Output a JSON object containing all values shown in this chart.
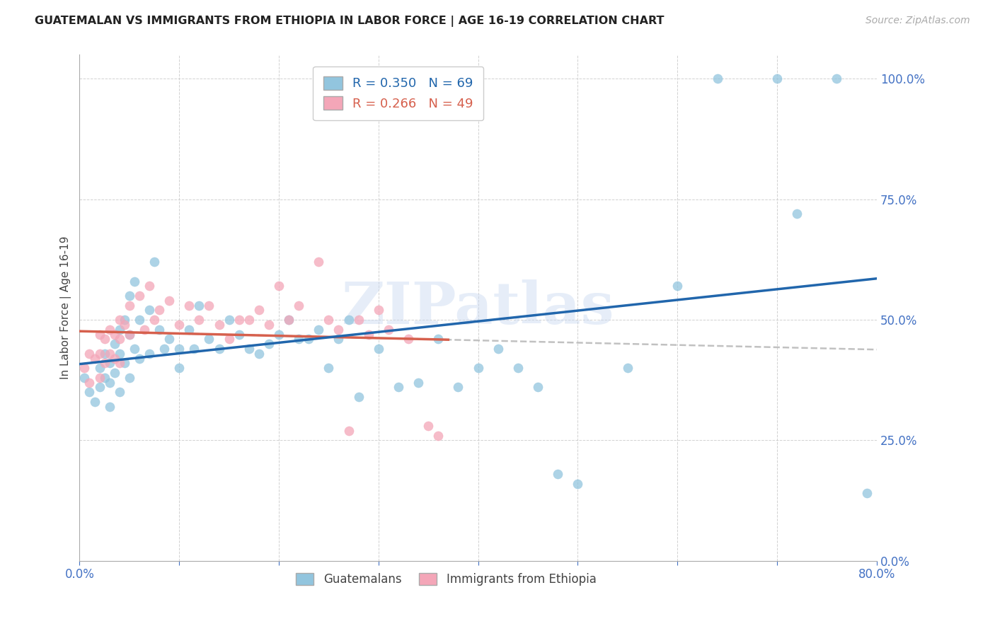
{
  "title": "GUATEMALAN VS IMMIGRANTS FROM ETHIOPIA IN LABOR FORCE | AGE 16-19 CORRELATION CHART",
  "source": "Source: ZipAtlas.com",
  "ylabel": "In Labor Force | Age 16-19",
  "xmin": 0.0,
  "xmax": 0.8,
  "ymin": 0.0,
  "ymax": 1.05,
  "yticks": [
    0.0,
    0.25,
    0.5,
    0.75,
    1.0
  ],
  "xticks": [
    0.0,
    0.1,
    0.2,
    0.3,
    0.4,
    0.5,
    0.6,
    0.7,
    0.8
  ],
  "xtick_labels": [
    "0.0%",
    "",
    "",
    "",
    "",
    "",
    "",
    "",
    "80.0%"
  ],
  "blue_color": "#92c5de",
  "pink_color": "#f4a6b8",
  "blue_line_color": "#2166ac",
  "pink_line_color": "#d6604d",
  "gray_dash_color": "#bbbbbb",
  "axis_color": "#4472C4",
  "watermark": "ZIPatlas",
  "legend_r_blue": "R = 0.350",
  "legend_n_blue": "N = 69",
  "legend_r_pink": "R = 0.266",
  "legend_n_pink": "N = 49",
  "blue_x": [
    0.005,
    0.01,
    0.015,
    0.02,
    0.02,
    0.025,
    0.025,
    0.03,
    0.03,
    0.03,
    0.035,
    0.035,
    0.04,
    0.04,
    0.04,
    0.045,
    0.045,
    0.05,
    0.05,
    0.05,
    0.055,
    0.055,
    0.06,
    0.06,
    0.07,
    0.07,
    0.075,
    0.08,
    0.085,
    0.09,
    0.1,
    0.1,
    0.11,
    0.115,
    0.12,
    0.13,
    0.14,
    0.15,
    0.16,
    0.17,
    0.18,
    0.19,
    0.2,
    0.21,
    0.22,
    0.23,
    0.24,
    0.25,
    0.26,
    0.27,
    0.28,
    0.3,
    0.32,
    0.34,
    0.36,
    0.38,
    0.4,
    0.42,
    0.44,
    0.46,
    0.48,
    0.5,
    0.55,
    0.6,
    0.64,
    0.7,
    0.72,
    0.76,
    0.79
  ],
  "blue_y": [
    0.38,
    0.35,
    0.33,
    0.4,
    0.36,
    0.43,
    0.38,
    0.41,
    0.37,
    0.32,
    0.45,
    0.39,
    0.48,
    0.43,
    0.35,
    0.5,
    0.41,
    0.55,
    0.47,
    0.38,
    0.58,
    0.44,
    0.5,
    0.42,
    0.52,
    0.43,
    0.62,
    0.48,
    0.44,
    0.46,
    0.44,
    0.4,
    0.48,
    0.44,
    0.53,
    0.46,
    0.44,
    0.5,
    0.47,
    0.44,
    0.43,
    0.45,
    0.47,
    0.5,
    0.46,
    0.46,
    0.48,
    0.4,
    0.46,
    0.5,
    0.34,
    0.44,
    0.36,
    0.37,
    0.46,
    0.36,
    0.4,
    0.44,
    0.4,
    0.36,
    0.18,
    0.16,
    0.4,
    0.57,
    1.0,
    1.0,
    0.72,
    1.0,
    0.14
  ],
  "pink_x": [
    0.005,
    0.01,
    0.01,
    0.015,
    0.02,
    0.02,
    0.02,
    0.025,
    0.025,
    0.03,
    0.03,
    0.035,
    0.035,
    0.04,
    0.04,
    0.04,
    0.045,
    0.05,
    0.05,
    0.06,
    0.065,
    0.07,
    0.075,
    0.08,
    0.09,
    0.1,
    0.11,
    0.12,
    0.13,
    0.14,
    0.15,
    0.16,
    0.17,
    0.18,
    0.19,
    0.2,
    0.21,
    0.22,
    0.24,
    0.25,
    0.26,
    0.27,
    0.28,
    0.29,
    0.3,
    0.31,
    0.33,
    0.35,
    0.36
  ],
  "pink_y": [
    0.4,
    0.43,
    0.37,
    0.42,
    0.47,
    0.43,
    0.38,
    0.46,
    0.41,
    0.48,
    0.43,
    0.47,
    0.42,
    0.5,
    0.46,
    0.41,
    0.49,
    0.53,
    0.47,
    0.55,
    0.48,
    0.57,
    0.5,
    0.52,
    0.54,
    0.49,
    0.53,
    0.5,
    0.53,
    0.49,
    0.46,
    0.5,
    0.5,
    0.52,
    0.49,
    0.57,
    0.5,
    0.53,
    0.62,
    0.5,
    0.48,
    0.27,
    0.5,
    0.47,
    0.52,
    0.48,
    0.46,
    0.28,
    0.26
  ]
}
